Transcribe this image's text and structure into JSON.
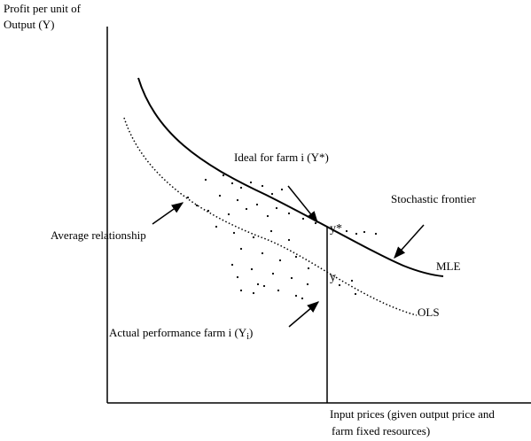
{
  "y_axis_label": {
    "line1": "Profit per unit of",
    "line2": "Output (Y)"
  },
  "x_axis_label": {
    "line1": "Input prices (given output price and",
    "line2": "farm fixed resources)"
  },
  "labels": {
    "ideal": "Ideal for farm i (Y*)",
    "stochastic_frontier": "Stochastic frontier",
    "average_relationship": "Average relationship",
    "mle": "MLE",
    "ols": "OLS",
    "actual_prefix": "Actual performance farm i (Y",
    "actual_subscript": "i",
    "actual_suffix": ")",
    "y_star": "y*",
    "y": "y"
  },
  "colors": {
    "ink": "#000000",
    "background": "#ffffff"
  }
}
